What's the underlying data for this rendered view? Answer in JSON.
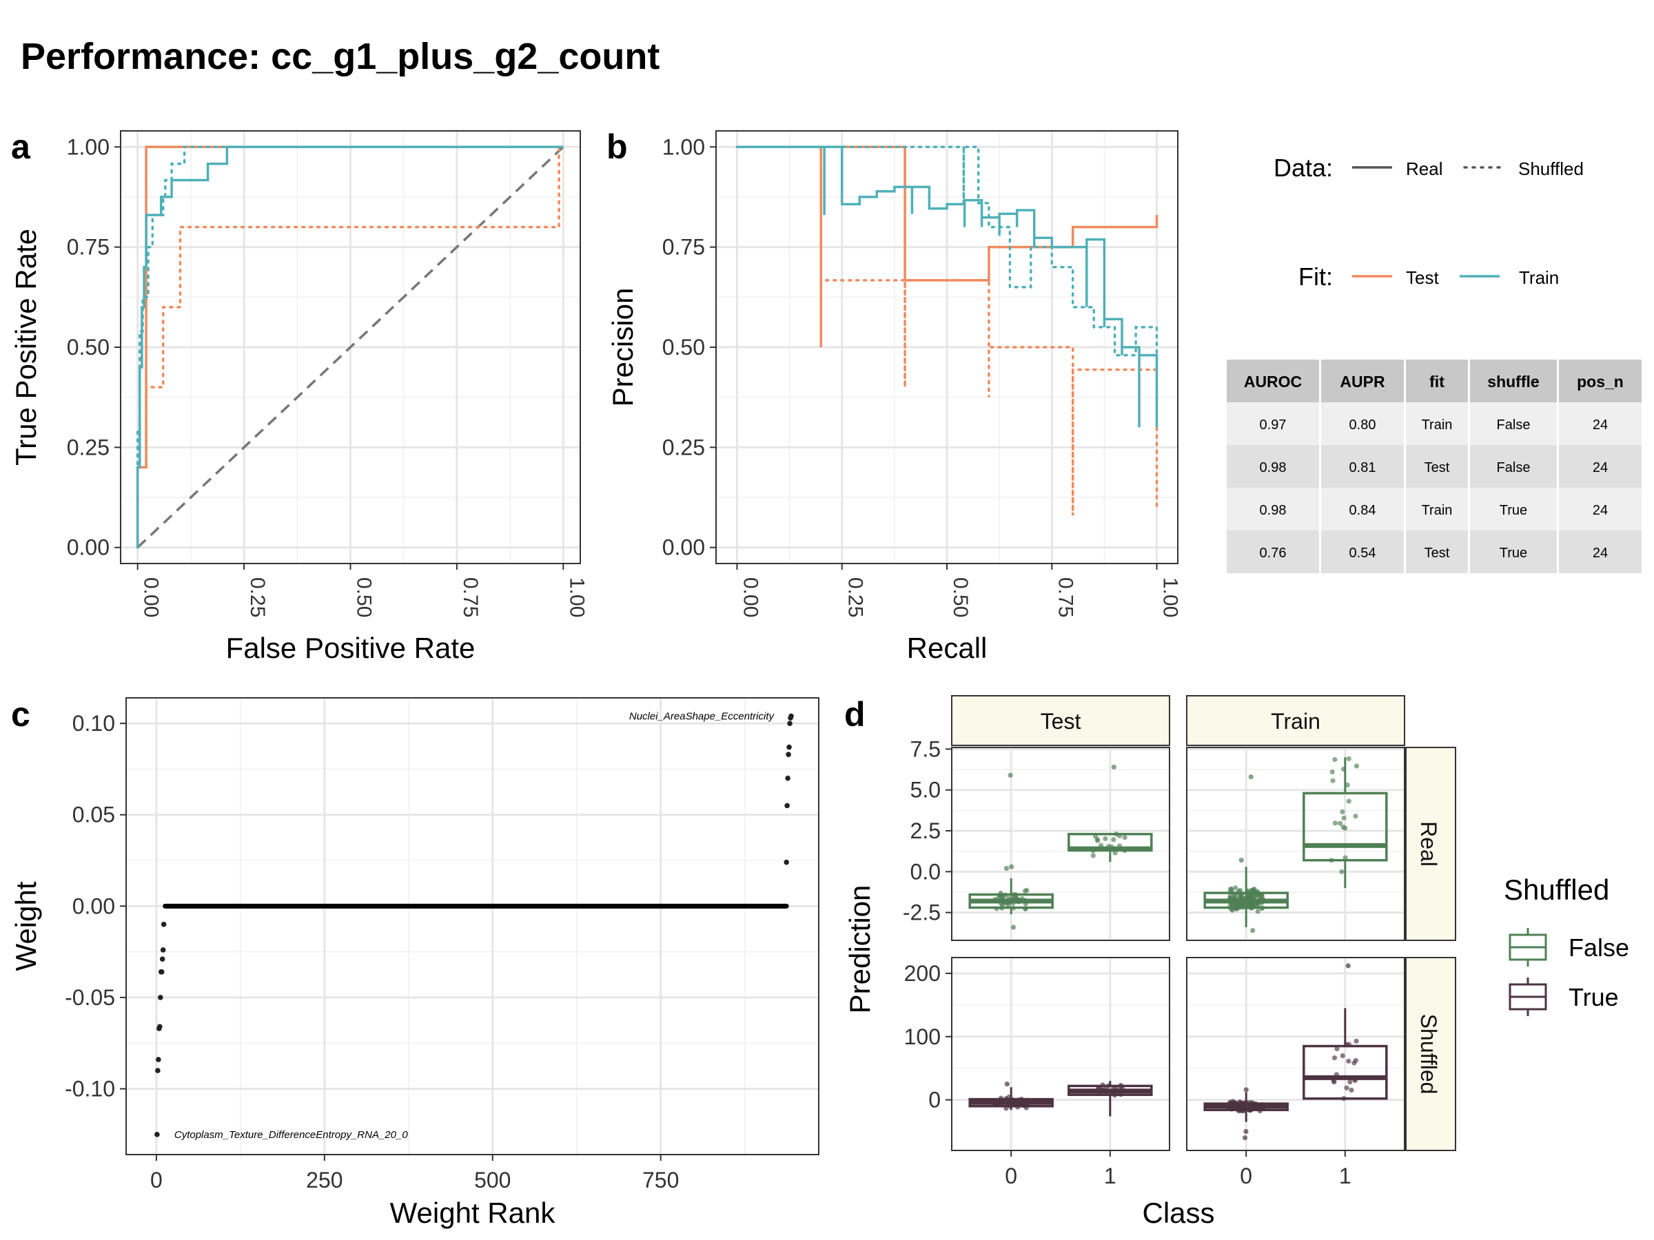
{
  "title": "Performance: cc_g1_plus_g2_count",
  "panels": {
    "a": "a",
    "b": "b",
    "c": "c",
    "d": "d"
  },
  "colors": {
    "test": "#f08a5d",
    "train": "#4fb0b8",
    "shuffled_false": "#4f8055",
    "shuffled_true": "#4d3340",
    "strip": "#fafaeb",
    "grid": "#e6e6e6",
    "diag": "#777777",
    "table_header": "#c8c8c8",
    "table_odd": "#efefef",
    "table_even": "#e0e0e0"
  },
  "legend": {
    "data_title": "Data:",
    "data_real": "Real",
    "data_shuffled": "Shuffled",
    "fit_title": "Fit:",
    "fit_test": "Test",
    "fit_train": "Train",
    "shuffled_title": "Shuffled",
    "shuffled_false": "False",
    "shuffled_true": "True"
  },
  "table": {
    "columns": [
      "AUROC",
      "AUPR",
      "fit",
      "shuffle",
      "pos_n"
    ],
    "rows": [
      [
        "0.97",
        "0.80",
        "Train",
        "False",
        "24"
      ],
      [
        "0.98",
        "0.81",
        "Test",
        "False",
        "24"
      ],
      [
        "0.98",
        "0.84",
        "Train",
        "True",
        "24"
      ],
      [
        "0.76",
        "0.54",
        "Test",
        "True",
        "24"
      ]
    ]
  },
  "chart_data": [
    {
      "id": "roc",
      "type": "line",
      "xlabel": "False Positive Rate",
      "ylabel": "True Positive Rate",
      "xlim": [
        -0.04,
        1.04
      ],
      "ylim": [
        -0.04,
        1.04
      ],
      "xticks": [
        0,
        0.25,
        0.5,
        0.75,
        1.0
      ],
      "xtick_labels": [
        "0.00",
        "0.25",
        "0.50",
        "0.75",
        "1.00"
      ],
      "yticks": [
        0,
        0.25,
        0.5,
        0.75,
        1.0
      ],
      "ytick_labels": [
        "0.00",
        "0.25",
        "0.50",
        "0.75",
        "1.00"
      ],
      "reference_line": [
        [
          0,
          0
        ],
        [
          1,
          1
        ]
      ],
      "series": [
        {
          "name": "Test",
          "line": "Real",
          "points": [
            [
              0,
              0
            ],
            [
              0,
              0.2
            ],
            [
              0.02,
              0.2
            ],
            [
              0.02,
              1.0
            ],
            [
              1,
              1
            ]
          ]
        },
        {
          "name": "Test",
          "line": "Shuffled",
          "points": [
            [
              0,
              0
            ],
            [
              0,
              0.2
            ],
            [
              0.02,
              0.2
            ],
            [
              0.02,
              0.4
            ],
            [
              0.06,
              0.4
            ],
            [
              0.06,
              0.6
            ],
            [
              0.1,
              0.6
            ],
            [
              0.1,
              0.8
            ],
            [
              0.99,
              0.8
            ],
            [
              0.99,
              1.0
            ],
            [
              1,
              1
            ]
          ]
        },
        {
          "name": "Train",
          "line": "Real",
          "points": [
            [
              0,
              0
            ],
            [
              0,
              0.2
            ],
            [
              0.005,
              0.2
            ],
            [
              0.005,
              0.45
            ],
            [
              0.01,
              0.45
            ],
            [
              0.01,
              0.6
            ],
            [
              0.015,
              0.6
            ],
            [
              0.015,
              0.7
            ],
            [
              0.02,
              0.7
            ],
            [
              0.02,
              0.83
            ],
            [
              0.055,
              0.83
            ],
            [
              0.055,
              0.875
            ],
            [
              0.08,
              0.875
            ],
            [
              0.08,
              0.917
            ],
            [
              0.165,
              0.917
            ],
            [
              0.165,
              0.958
            ],
            [
              0.21,
              0.958
            ],
            [
              0.21,
              1.0
            ],
            [
              1,
              1
            ]
          ]
        },
        {
          "name": "Train",
          "line": "Shuffled",
          "points": [
            [
              0,
              0
            ],
            [
              0,
              0.29
            ],
            [
              0.005,
              0.29
            ],
            [
              0.005,
              0.54
            ],
            [
              0.012,
              0.54
            ],
            [
              0.012,
              0.625
            ],
            [
              0.025,
              0.625
            ],
            [
              0.025,
              0.75
            ],
            [
              0.035,
              0.75
            ],
            [
              0.035,
              0.83
            ],
            [
              0.06,
              0.83
            ],
            [
              0.06,
              0.875
            ],
            [
              0.065,
              0.875
            ],
            [
              0.065,
              0.917
            ],
            [
              0.08,
              0.917
            ],
            [
              0.08,
              0.958
            ],
            [
              0.11,
              0.958
            ],
            [
              0.11,
              1.0
            ],
            [
              1,
              1
            ]
          ]
        }
      ]
    },
    {
      "id": "pr",
      "type": "line",
      "xlabel": "Recall",
      "ylabel": "Precision",
      "xlim": [
        -0.05,
        1.05
      ],
      "ylim": [
        -0.04,
        1.04
      ],
      "xticks": [
        0,
        0.25,
        0.5,
        0.75,
        1.0
      ],
      "xtick_labels": [
        "0.00",
        "0.25",
        "0.50",
        "0.75",
        "1.00"
      ],
      "yticks": [
        0,
        0.25,
        0.5,
        0.75,
        1.0
      ],
      "ytick_labels": [
        "0.00",
        "0.25",
        "0.50",
        "0.75",
        "1.00"
      ],
      "series": [
        {
          "name": "Test",
          "line": "Real",
          "points": [
            [
              0,
              1
            ],
            [
              0.2,
              1
            ],
            [
              0.2,
              0.5
            ],
            [
              0.2,
              1
            ],
            [
              0.4,
              1
            ],
            [
              0.4,
              0.667
            ],
            [
              0.6,
              0.667
            ],
            [
              0.6,
              0.75
            ],
            [
              0.8,
              0.75
            ],
            [
              0.8,
              0.8
            ],
            [
              1,
              0.8
            ],
            [
              1,
              0.83
            ]
          ]
        },
        {
          "name": "Test",
          "line": "Shuffled",
          "points": [
            [
              0,
              1
            ],
            [
              0.2,
              1
            ],
            [
              0.2,
              0.5
            ],
            [
              0.2,
              0.667
            ],
            [
              0.4,
              0.667
            ],
            [
              0.4,
              0.4
            ],
            [
              0.4,
              0.667
            ],
            [
              0.6,
              0.667
            ],
            [
              0.6,
              0.375
            ],
            [
              0.6,
              0.5
            ],
            [
              0.8,
              0.5
            ],
            [
              0.8,
              0.08
            ],
            [
              0.8,
              0.444
            ],
            [
              1,
              0.444
            ],
            [
              1,
              0.1
            ]
          ]
        },
        {
          "name": "Train",
          "line": "Real",
          "points": [
            [
              0,
              1
            ],
            [
              0.208,
              1
            ],
            [
              0.208,
              0.83
            ],
            [
              0.208,
              1
            ],
            [
              0.25,
              1
            ],
            [
              0.25,
              0.857
            ],
            [
              0.292,
              0.857
            ],
            [
              0.292,
              0.875
            ],
            [
              0.333,
              0.875
            ],
            [
              0.333,
              0.889
            ],
            [
              0.375,
              0.889
            ],
            [
              0.375,
              0.9
            ],
            [
              0.417,
              0.9
            ],
            [
              0.417,
              0.833
            ],
            [
              0.417,
              0.9
            ],
            [
              0.458,
              0.9
            ],
            [
              0.458,
              0.846
            ],
            [
              0.5,
              0.846
            ],
            [
              0.5,
              0.857
            ],
            [
              0.542,
              0.857
            ],
            [
              0.542,
              0.8
            ],
            [
              0.542,
              0.867
            ],
            [
              0.583,
              0.867
            ],
            [
              0.583,
              0.8
            ],
            [
              0.583,
              0.824
            ],
            [
              0.625,
              0.824
            ],
            [
              0.625,
              0.778
            ],
            [
              0.625,
              0.833
            ],
            [
              0.667,
              0.833
            ],
            [
              0.667,
              0.8
            ],
            [
              0.667,
              0.842
            ],
            [
              0.708,
              0.842
            ],
            [
              0.708,
              0.75
            ],
            [
              0.708,
              0.773
            ],
            [
              0.75,
              0.773
            ],
            [
              0.75,
              0.75
            ],
            [
              0.792,
              0.75
            ],
            [
              0.792,
              0.75
            ],
            [
              0.833,
              0.75
            ],
            [
              0.833,
              0.6
            ],
            [
              0.833,
              0.769
            ],
            [
              0.875,
              0.769
            ],
            [
              0.875,
              0.55
            ],
            [
              0.875,
              0.57
            ],
            [
              0.917,
              0.57
            ],
            [
              0.917,
              0.48
            ],
            [
              0.917,
              0.5
            ],
            [
              0.958,
              0.5
            ],
            [
              0.958,
              0.3
            ],
            [
              0.958,
              0.48
            ],
            [
              1,
              0.48
            ],
            [
              1,
              0.33
            ],
            [
              1,
              0.3
            ]
          ]
        },
        {
          "name": "Train",
          "line": "Shuffled",
          "points": [
            [
              0,
              1
            ],
            [
              0.54,
              1
            ],
            [
              0.54,
              0.86
            ],
            [
              0.54,
              1
            ],
            [
              0.575,
              1
            ],
            [
              0.575,
              0.86
            ],
            [
              0.6,
              0.86
            ],
            [
              0.6,
              0.8
            ],
            [
              0.65,
              0.8
            ],
            [
              0.65,
              0.65
            ],
            [
              0.7,
              0.65
            ],
            [
              0.7,
              0.75
            ],
            [
              0.75,
              0.75
            ],
            [
              0.75,
              0.7
            ],
            [
              0.8,
              0.7
            ],
            [
              0.8,
              0.6
            ],
            [
              0.85,
              0.6
            ],
            [
              0.85,
              0.55
            ],
            [
              0.9,
              0.55
            ],
            [
              0.9,
              0.48
            ],
            [
              0.95,
              0.48
            ],
            [
              0.95,
              0.55
            ],
            [
              1,
              0.55
            ],
            [
              1,
              0.45
            ]
          ]
        }
      ]
    },
    {
      "id": "weights",
      "type": "scatter",
      "xlabel": "Weight Rank",
      "ylabel": "Weight",
      "xlim": [
        -45,
        985
      ],
      "ylim": [
        -0.136,
        0.114
      ],
      "xticks": [
        0,
        250,
        500,
        750
      ],
      "xtick_labels": [
        "0",
        "250",
        "500",
        "750"
      ],
      "yticks": [
        -0.1,
        -0.05,
        0.0,
        0.05,
        0.1
      ],
      "ytick_labels": [
        "-0.10",
        "-0.05",
        "0.00",
        "0.05",
        "0.10"
      ],
      "zero_run": [
        13,
        937
      ],
      "points": [
        [
          1,
          -0.125
        ],
        [
          2,
          -0.09
        ],
        [
          3,
          -0.084
        ],
        [
          4,
          -0.067
        ],
        [
          5,
          -0.066
        ],
        [
          6,
          -0.05
        ],
        [
          7,
          -0.036
        ],
        [
          8,
          -0.036
        ],
        [
          9,
          -0.029
        ],
        [
          10,
          -0.024
        ],
        [
          11,
          -0.01
        ],
        [
          937,
          0.024
        ],
        [
          938,
          0.055
        ],
        [
          939,
          0.07
        ],
        [
          940,
          0.083
        ],
        [
          941,
          0.087
        ],
        [
          942,
          0.1
        ],
        [
          943,
          0.103
        ],
        [
          944,
          0.104
        ]
      ],
      "annotations": [
        {
          "text": "Nuclei_AreaShape_Eccentricity",
          "x": 944,
          "y": 0.104
        },
        {
          "text": "Cytoplasm_Texture_DifferenceEntropy_RNA_20_0",
          "x": 1,
          "y": -0.125
        }
      ]
    },
    {
      "id": "predictions",
      "type": "box",
      "xlabel": "Class",
      "ylabel": "Prediction",
      "columns": [
        "Test",
        "Train"
      ],
      "rows": [
        "Real",
        "Shuffled"
      ],
      "x_categories": [
        "0",
        "1"
      ],
      "row_scales": {
        "Real": {
          "ylim": [
            -4.2,
            7.6
          ],
          "yticks": [
            -2.5,
            0,
            2.5,
            5.0,
            7.5
          ],
          "ytick_labels": [
            "-2.5",
            "0.0",
            "2.5",
            "5.0",
            "7.5"
          ]
        },
        "Shuffled": {
          "ylim": [
            -80,
            225
          ],
          "yticks": [
            0,
            100,
            200
          ],
          "ytick_labels": [
            "0",
            "100",
            "200"
          ]
        }
      },
      "boxes": [
        {
          "col": "Test",
          "row": "Real",
          "class": "0",
          "shuffled": "False",
          "q1": -2.2,
          "median": -1.8,
          "q3": -1.4,
          "lo": -2.6,
          "hi": -0.4,
          "outliers": [
            5.9,
            0.2,
            -3.4,
            0.3
          ]
        },
        {
          "col": "Test",
          "row": "Real",
          "class": "1",
          "shuffled": "False",
          "q1": 1.3,
          "median": 1.4,
          "q3": 2.3,
          "lo": 0.6,
          "hi": 2.3,
          "outliers": [
            6.4
          ]
        },
        {
          "col": "Train",
          "row": "Real",
          "class": "0",
          "shuffled": "False",
          "q1": -2.2,
          "median": -1.8,
          "q3": -1.3,
          "lo": -3.4,
          "hi": 0.3,
          "outliers": [
            5.8,
            0.7,
            -3.6
          ]
        },
        {
          "col": "Train",
          "row": "Real",
          "class": "1",
          "shuffled": "False",
          "q1": 0.7,
          "median": 1.6,
          "q3": 4.8,
          "lo": -1.0,
          "hi": 7.0,
          "outliers": []
        },
        {
          "col": "Test",
          "row": "Shuffled",
          "class": "0",
          "shuffled": "True",
          "q1": -10,
          "median": -4,
          "q3": 1,
          "lo": -16,
          "hi": 20,
          "outliers": [
            25
          ]
        },
        {
          "col": "Test",
          "row": "Shuffled",
          "class": "1",
          "shuffled": "True",
          "q1": 8,
          "median": 14,
          "q3": 22,
          "lo": -26,
          "hi": 30,
          "outliers": []
        },
        {
          "col": "Train",
          "row": "Shuffled",
          "class": "0",
          "shuffled": "True",
          "q1": -16,
          "median": -10,
          "q3": -6,
          "lo": -35,
          "hi": 12,
          "outliers": [
            -60,
            -50,
            16
          ]
        },
        {
          "col": "Train",
          "row": "Shuffled",
          "class": "1",
          "shuffled": "True",
          "q1": 2,
          "median": 35,
          "q3": 85,
          "lo": 0,
          "hi": 145,
          "outliers": [
            212
          ]
        }
      ]
    }
  ]
}
